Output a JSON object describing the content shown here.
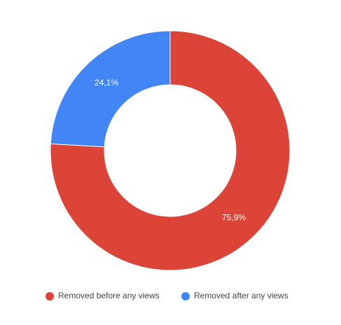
{
  "chart_data": {
    "type": "donut",
    "categories": [
      "Removed before any views",
      "Removed after any views"
    ],
    "values": [
      75.9,
      24.1
    ],
    "value_labels": [
      "75,9%",
      "24,1%"
    ],
    "colors": [
      "#db4437",
      "#4285f4"
    ],
    "legend": "bottom"
  }
}
